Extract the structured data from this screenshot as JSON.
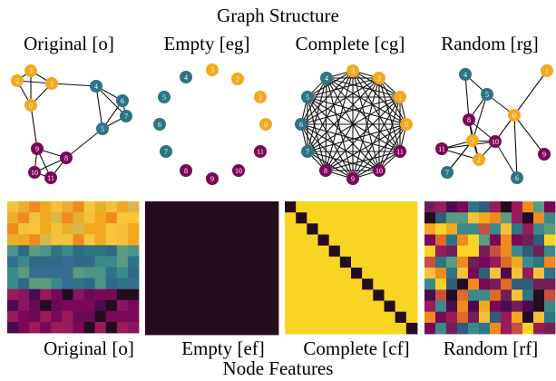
{
  "top_title": "Graph Structure",
  "bottom_title": "Node Features",
  "graph_panels": [
    {
      "label": "Original [o]",
      "kind": "original"
    },
    {
      "label": "Empty [eg]",
      "kind": "empty"
    },
    {
      "label": "Complete [cg]",
      "kind": "complete"
    },
    {
      "label": "Random [rg]",
      "kind": "random"
    }
  ],
  "feature_panels": [
    {
      "label": "Original [o]",
      "kind": "original"
    },
    {
      "label": "Empty [ef]",
      "kind": "empty"
    },
    {
      "label": "Complete [cf]",
      "kind": "complete"
    },
    {
      "label": "Random [rf]",
      "kind": "random"
    }
  ],
  "node_ids": [
    "0",
    "1",
    "2",
    "3",
    "4",
    "5",
    "6",
    "7",
    "8",
    "9",
    "10",
    "11"
  ],
  "node_groups": [
    "yellow",
    "yellow",
    "yellow",
    "yellow",
    "teal",
    "teal",
    "teal",
    "teal",
    "purple",
    "purple",
    "purple",
    "purple"
  ],
  "colors": {
    "yellow": "#f2a91f",
    "teal": "#2d7484",
    "purple": "#7b0857",
    "matrix_dark": "#240d1f",
    "matrix_bright": "#f9d523",
    "edge": "#111111"
  },
  "original_edges": [
    [
      0,
      1
    ],
    [
      0,
      2
    ],
    [
      0,
      3
    ],
    [
      1,
      2
    ],
    [
      1,
      3
    ],
    [
      2,
      3
    ],
    [
      4,
      5
    ],
    [
      4,
      6
    ],
    [
      4,
      7
    ],
    [
      5,
      6
    ],
    [
      5,
      7
    ],
    [
      6,
      7
    ],
    [
      8,
      9
    ],
    [
      8,
      10
    ],
    [
      8,
      11
    ],
    [
      9,
      10
    ],
    [
      9,
      11
    ],
    [
      10,
      11
    ],
    [
      0,
      9
    ],
    [
      1,
      4
    ],
    [
      5,
      8
    ]
  ],
  "random_edges": [
    [
      4,
      5
    ],
    [
      4,
      8
    ],
    [
      5,
      0
    ],
    [
      5,
      3
    ],
    [
      5,
      8
    ],
    [
      3,
      8
    ],
    [
      3,
      2
    ],
    [
      3,
      11
    ],
    [
      3,
      10
    ],
    [
      3,
      7
    ],
    [
      8,
      10
    ],
    [
      0,
      10
    ],
    [
      0,
      9
    ],
    [
      0,
      6
    ],
    [
      1,
      0
    ],
    [
      2,
      11
    ],
    [
      2,
      10
    ],
    [
      11,
      10
    ],
    [
      7,
      3
    ],
    [
      6,
      10
    ],
    [
      8,
      2
    ]
  ]
}
